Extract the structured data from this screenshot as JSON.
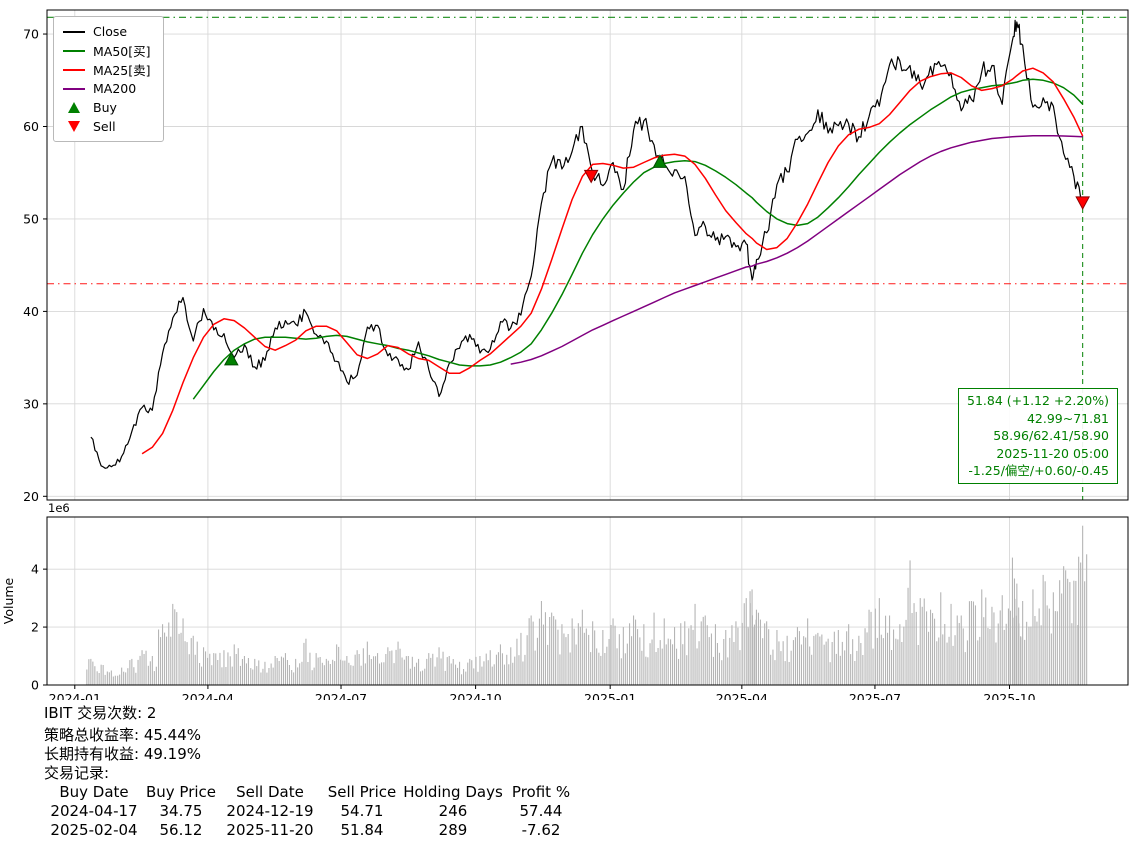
{
  "chart_data": {
    "type": "line",
    "title": "",
    "grid": true,
    "grid_color": "#d8d8d8",
    "legend_position": "upper-left",
    "x_range": [
      "2023-12-13",
      "2025-12-21"
    ],
    "x_ticks": [
      {
        "label": "2024-01",
        "date": "2024-01-01"
      },
      {
        "label": "2024-04",
        "date": "2024-04-01"
      },
      {
        "label": "2024-07",
        "date": "2024-07-01"
      },
      {
        "label": "2024-10",
        "date": "2024-10-01"
      },
      {
        "label": "2025-01",
        "date": "2025-01-01"
      },
      {
        "label": "2025-04",
        "date": "2025-04-01"
      },
      {
        "label": "2025-07",
        "date": "2025-07-01"
      },
      {
        "label": "2025-10",
        "date": "2025-10-01"
      }
    ],
    "price_ylim": [
      19.6,
      72.6
    ],
    "price_y_ticks": [
      20,
      30,
      40,
      50,
      60,
      70
    ],
    "x": [
      "2024-01-12",
      "2024-01-19",
      "2024-01-26",
      "2024-02-02",
      "2024-02-09",
      "2024-02-16",
      "2024-02-23",
      "2024-03-01",
      "2024-03-08",
      "2024-03-15",
      "2024-03-22",
      "2024-03-29",
      "2024-04-05",
      "2024-04-12",
      "2024-04-19",
      "2024-04-26",
      "2024-05-03",
      "2024-05-10",
      "2024-05-17",
      "2024-05-24",
      "2024-05-31",
      "2024-06-07",
      "2024-06-14",
      "2024-06-21",
      "2024-06-28",
      "2024-07-05",
      "2024-07-12",
      "2024-07-19",
      "2024-07-26",
      "2024-08-02",
      "2024-08-09",
      "2024-08-16",
      "2024-08-23",
      "2024-08-30",
      "2024-09-06",
      "2024-09-13",
      "2024-09-20",
      "2024-09-27",
      "2024-10-04",
      "2024-10-11",
      "2024-10-18",
      "2024-10-25",
      "2024-11-01",
      "2024-11-08",
      "2024-11-15",
      "2024-11-22",
      "2024-11-29",
      "2024-12-06",
      "2024-12-13",
      "2024-12-20",
      "2024-12-27",
      "2025-01-03",
      "2025-01-10",
      "2025-01-17",
      "2025-01-24",
      "2025-01-31",
      "2025-02-07",
      "2025-02-14",
      "2025-02-21",
      "2025-02-28",
      "2025-03-07",
      "2025-03-14",
      "2025-03-21",
      "2025-03-28",
      "2025-04-04",
      "2025-04-08",
      "2025-04-11",
      "2025-04-18",
      "2025-04-25",
      "2025-05-02",
      "2025-05-09",
      "2025-05-16",
      "2025-05-23",
      "2025-05-30",
      "2025-06-06",
      "2025-06-13",
      "2025-06-20",
      "2025-06-27",
      "2025-07-04",
      "2025-07-11",
      "2025-07-18",
      "2025-07-25",
      "2025-08-01",
      "2025-08-08",
      "2025-08-15",
      "2025-08-22",
      "2025-08-29",
      "2025-09-05",
      "2025-09-12",
      "2025-09-19",
      "2025-09-26",
      "2025-10-03",
      "2025-10-06",
      "2025-10-10",
      "2025-10-17",
      "2025-10-24",
      "2025-10-31",
      "2025-11-07",
      "2025-11-14",
      "2025-11-20"
    ],
    "series": [
      {
        "key": "close",
        "name": "Close",
        "color": "#000000",
        "values": [
          26.4,
          23.3,
          23.2,
          24.3,
          27.0,
          29.6,
          29.3,
          35.5,
          39.3,
          41.5,
          36.8,
          40.3,
          38.0,
          37.6,
          35.0,
          36.4,
          34.0,
          34.7,
          38.2,
          39.0,
          38.6,
          39.9,
          37.5,
          36.8,
          34.6,
          32.4,
          33.1,
          38.3,
          38.5,
          35.2,
          34.8,
          33.7,
          36.7,
          33.7,
          30.8,
          34.4,
          36.0,
          37.5,
          35.5,
          35.9,
          38.9,
          38.2,
          39.6,
          43.8,
          51.7,
          56.2,
          55.4,
          57.3,
          60.0,
          55.0,
          53.6,
          56.1,
          53.2,
          59.6,
          60.6,
          58.0,
          55.9,
          55.3,
          54.6,
          48.2,
          49.2,
          47.7,
          48.1,
          47.0,
          47.3,
          43.4,
          45.6,
          48.5,
          53.7,
          55.1,
          58.6,
          59.3,
          61.8,
          59.3,
          60.1,
          60.3,
          58.9,
          61.1,
          62.2,
          66.7,
          67.1,
          66.6,
          64.6,
          66.5,
          66.5,
          65.8,
          61.7,
          62.9,
          65.9,
          66.6,
          62.4,
          69.3,
          71.3,
          68.8,
          62.1,
          63.1,
          62.2,
          57.1,
          54.6,
          51.84
        ]
      },
      {
        "key": "ma50",
        "name": "MA50[买]",
        "color": "#008000",
        "values": [
          null,
          null,
          null,
          null,
          null,
          null,
          null,
          null,
          null,
          null,
          30.5,
          32.0,
          33.5,
          34.8,
          35.8,
          36.5,
          37.0,
          37.2,
          37.2,
          37.2,
          37.1,
          37.0,
          37.1,
          37.3,
          37.4,
          37.3,
          37.0,
          36.7,
          36.5,
          36.3,
          36.0,
          35.8,
          35.5,
          35.2,
          34.8,
          34.5,
          34.2,
          34.1,
          34.1,
          34.2,
          34.5,
          35.0,
          35.6,
          36.5,
          38.0,
          39.8,
          41.8,
          44.0,
          46.3,
          48.3,
          50.0,
          51.5,
          52.8,
          54.0,
          55.0,
          55.6,
          56.0,
          56.2,
          56.3,
          56.2,
          55.8,
          55.2,
          54.5,
          53.7,
          52.8,
          52.3,
          51.8,
          50.8,
          50.0,
          49.5,
          49.3,
          49.5,
          50.2,
          51.2,
          52.3,
          53.5,
          54.8,
          56.0,
          57.2,
          58.3,
          59.3,
          60.2,
          61.0,
          61.8,
          62.5,
          63.2,
          63.7,
          64.0,
          64.2,
          64.4,
          64.5,
          64.7,
          64.8,
          65.0,
          65.1,
          65.0,
          64.7,
          64.2,
          63.4,
          62.41
        ]
      },
      {
        "key": "ma25",
        "name": "MA25[卖]",
        "color": "#ff0000",
        "values": [
          null,
          null,
          null,
          null,
          null,
          24.6,
          25.3,
          26.8,
          29.3,
          32.3,
          35.0,
          37.2,
          38.6,
          39.2,
          39.0,
          38.2,
          37.2,
          36.2,
          35.8,
          36.3,
          36.9,
          37.9,
          38.4,
          38.4,
          37.9,
          36.6,
          35.3,
          34.9,
          35.4,
          36.3,
          36.1,
          35.4,
          34.9,
          34.7,
          34.0,
          33.3,
          33.3,
          33.9,
          34.7,
          35.4,
          36.4,
          37.4,
          38.4,
          39.8,
          42.4,
          45.6,
          48.9,
          52.1,
          54.6,
          55.9,
          56.0,
          55.8,
          55.5,
          55.6,
          56.1,
          56.6,
          56.9,
          57.0,
          56.8,
          55.9,
          54.4,
          52.6,
          50.9,
          49.6,
          48.4,
          47.9,
          47.4,
          46.7,
          46.9,
          47.9,
          49.6,
          51.6,
          53.9,
          56.1,
          57.9,
          59.1,
          59.7,
          59.9,
          60.3,
          61.3,
          62.6,
          63.9,
          64.9,
          65.4,
          65.7,
          65.8,
          65.3,
          64.4,
          63.9,
          64.1,
          64.4,
          65.1,
          65.5,
          66.0,
          66.3,
          65.8,
          64.8,
          63.0,
          61.0,
          58.96
        ]
      },
      {
        "key": "ma200",
        "name": "MA200",
        "color": "#800080",
        "values": [
          null,
          null,
          null,
          null,
          null,
          null,
          null,
          null,
          null,
          null,
          null,
          null,
          null,
          null,
          null,
          null,
          null,
          null,
          null,
          null,
          null,
          null,
          null,
          null,
          null,
          null,
          null,
          null,
          null,
          null,
          null,
          null,
          null,
          null,
          null,
          null,
          null,
          null,
          null,
          null,
          null,
          34.3,
          34.5,
          34.8,
          35.2,
          35.7,
          36.2,
          36.8,
          37.4,
          38.0,
          38.5,
          39.0,
          39.5,
          40.0,
          40.5,
          41.0,
          41.5,
          42.0,
          42.4,
          42.8,
          43.2,
          43.6,
          44.0,
          44.4,
          44.8,
          44.9,
          45.1,
          45.4,
          45.8,
          46.3,
          46.9,
          47.6,
          48.4,
          49.2,
          50.0,
          50.8,
          51.6,
          52.4,
          53.2,
          54.0,
          54.8,
          55.5,
          56.2,
          56.8,
          57.3,
          57.7,
          58.0,
          58.3,
          58.5,
          58.7,
          58.8,
          58.9,
          58.92,
          58.95,
          59.0,
          59.0,
          59.0,
          58.97,
          58.93,
          58.9
        ]
      }
    ],
    "volume": {
      "name": "Volume",
      "color": "#b5b5b5",
      "ylim": [
        0,
        5.8
      ],
      "y_ticks": [
        0,
        2,
        4
      ],
      "scale_label": "1e6",
      "values": [
        0.9,
        0.7,
        0.5,
        0.6,
        0.9,
        1.2,
        1.0,
        2.1,
        2.8,
        2.3,
        1.7,
        1.3,
        1.1,
        1.2,
        1.4,
        1.0,
        0.9,
        0.8,
        1.0,
        1.1,
        0.9,
        1.6,
        1.1,
        0.9,
        1.4,
        1.0,
        1.2,
        1.5,
        1.1,
        1.3,
        1.5,
        1.0,
        0.9,
        1.1,
        1.3,
        1.0,
        0.8,
        0.9,
        1.0,
        1.2,
        1.4,
        1.3,
        1.8,
        2.4,
        2.9,
        2.5,
        2.1,
        2.3,
        2.6,
        2.2,
        1.9,
        2.3,
        2.0,
        2.4,
        2.1,
        2.5,
        2.3,
        2.0,
        2.2,
        2.8,
        2.4,
        2.1,
        1.9,
        2.2,
        3.0,
        3.3,
        2.6,
        2.2,
        1.9,
        1.7,
        2.0,
        2.3,
        1.8,
        1.6,
        1.9,
        2.1,
        1.7,
        2.6,
        3.0,
        2.4,
        2.1,
        4.3,
        3.0,
        2.6,
        3.2,
        2.8,
        2.4,
        2.9,
        3.3,
        2.7,
        3.1,
        4.4,
        3.5,
        2.9,
        3.3,
        3.8,
        3.2,
        4.1,
        3.6,
        5.5
      ]
    },
    "markers": {
      "buy": [
        {
          "date": "2024-04-17",
          "price": 34.75
        },
        {
          "date": "2025-02-04",
          "price": 56.12
        }
      ],
      "sell": [
        {
          "date": "2024-12-19",
          "price": 54.71
        },
        {
          "date": "2025-11-20",
          "price": 51.84
        }
      ]
    },
    "ref_lines": {
      "upper": {
        "value": 71.81,
        "color": "#008000",
        "style": "dashdot"
      },
      "lower": {
        "value": 42.99,
        "color": "#ff0000",
        "style": "dashdot"
      },
      "vertical": {
        "date": "2025-11-20",
        "color": "#008000",
        "style": "dashed"
      }
    },
    "legend": [
      {
        "key": "close",
        "label": "Close",
        "color": "#000000",
        "marker": "line"
      },
      {
        "key": "ma50",
        "label": "MA50[买]",
        "color": "#008000",
        "marker": "line"
      },
      {
        "key": "ma25",
        "label": "MA25[卖]",
        "color": "#ff0000",
        "marker": "line"
      },
      {
        "key": "ma200",
        "label": "MA200",
        "color": "#800080",
        "marker": "line"
      },
      {
        "key": "buy",
        "label": "Buy",
        "color": "#008000",
        "marker": "triangle-up"
      },
      {
        "key": "sell",
        "label": "Sell",
        "color": "#ff0000",
        "marker": "triangle-down"
      }
    ],
    "annotation": {
      "color": "#008000",
      "lines": [
        "51.84 (+1.12 +2.20%)",
        "42.99~71.81",
        "58.96/62.41/58.90",
        "2025-11-20 05:00",
        "-1.25/偏空/+0.60/-0.45"
      ]
    }
  },
  "summary": {
    "symbol_trades": "IBIT 交易次数: 2",
    "strategy_return": "策略总收益率: 45.44%",
    "hold_return": "长期持有收益: 49.19%",
    "records_label": "交易记录:"
  },
  "trade_table": {
    "headers": [
      "Buy Date",
      "Buy Price",
      "Sell Date",
      "Sell Price",
      "Holding Days",
      "Profit %"
    ],
    "rows": [
      [
        "2024-04-17",
        "34.75",
        "2024-12-19",
        "54.71",
        "246",
        "57.44"
      ],
      [
        "2025-02-04",
        "56.12",
        "2025-11-20",
        "51.84",
        "289",
        "-7.62"
      ]
    ]
  }
}
